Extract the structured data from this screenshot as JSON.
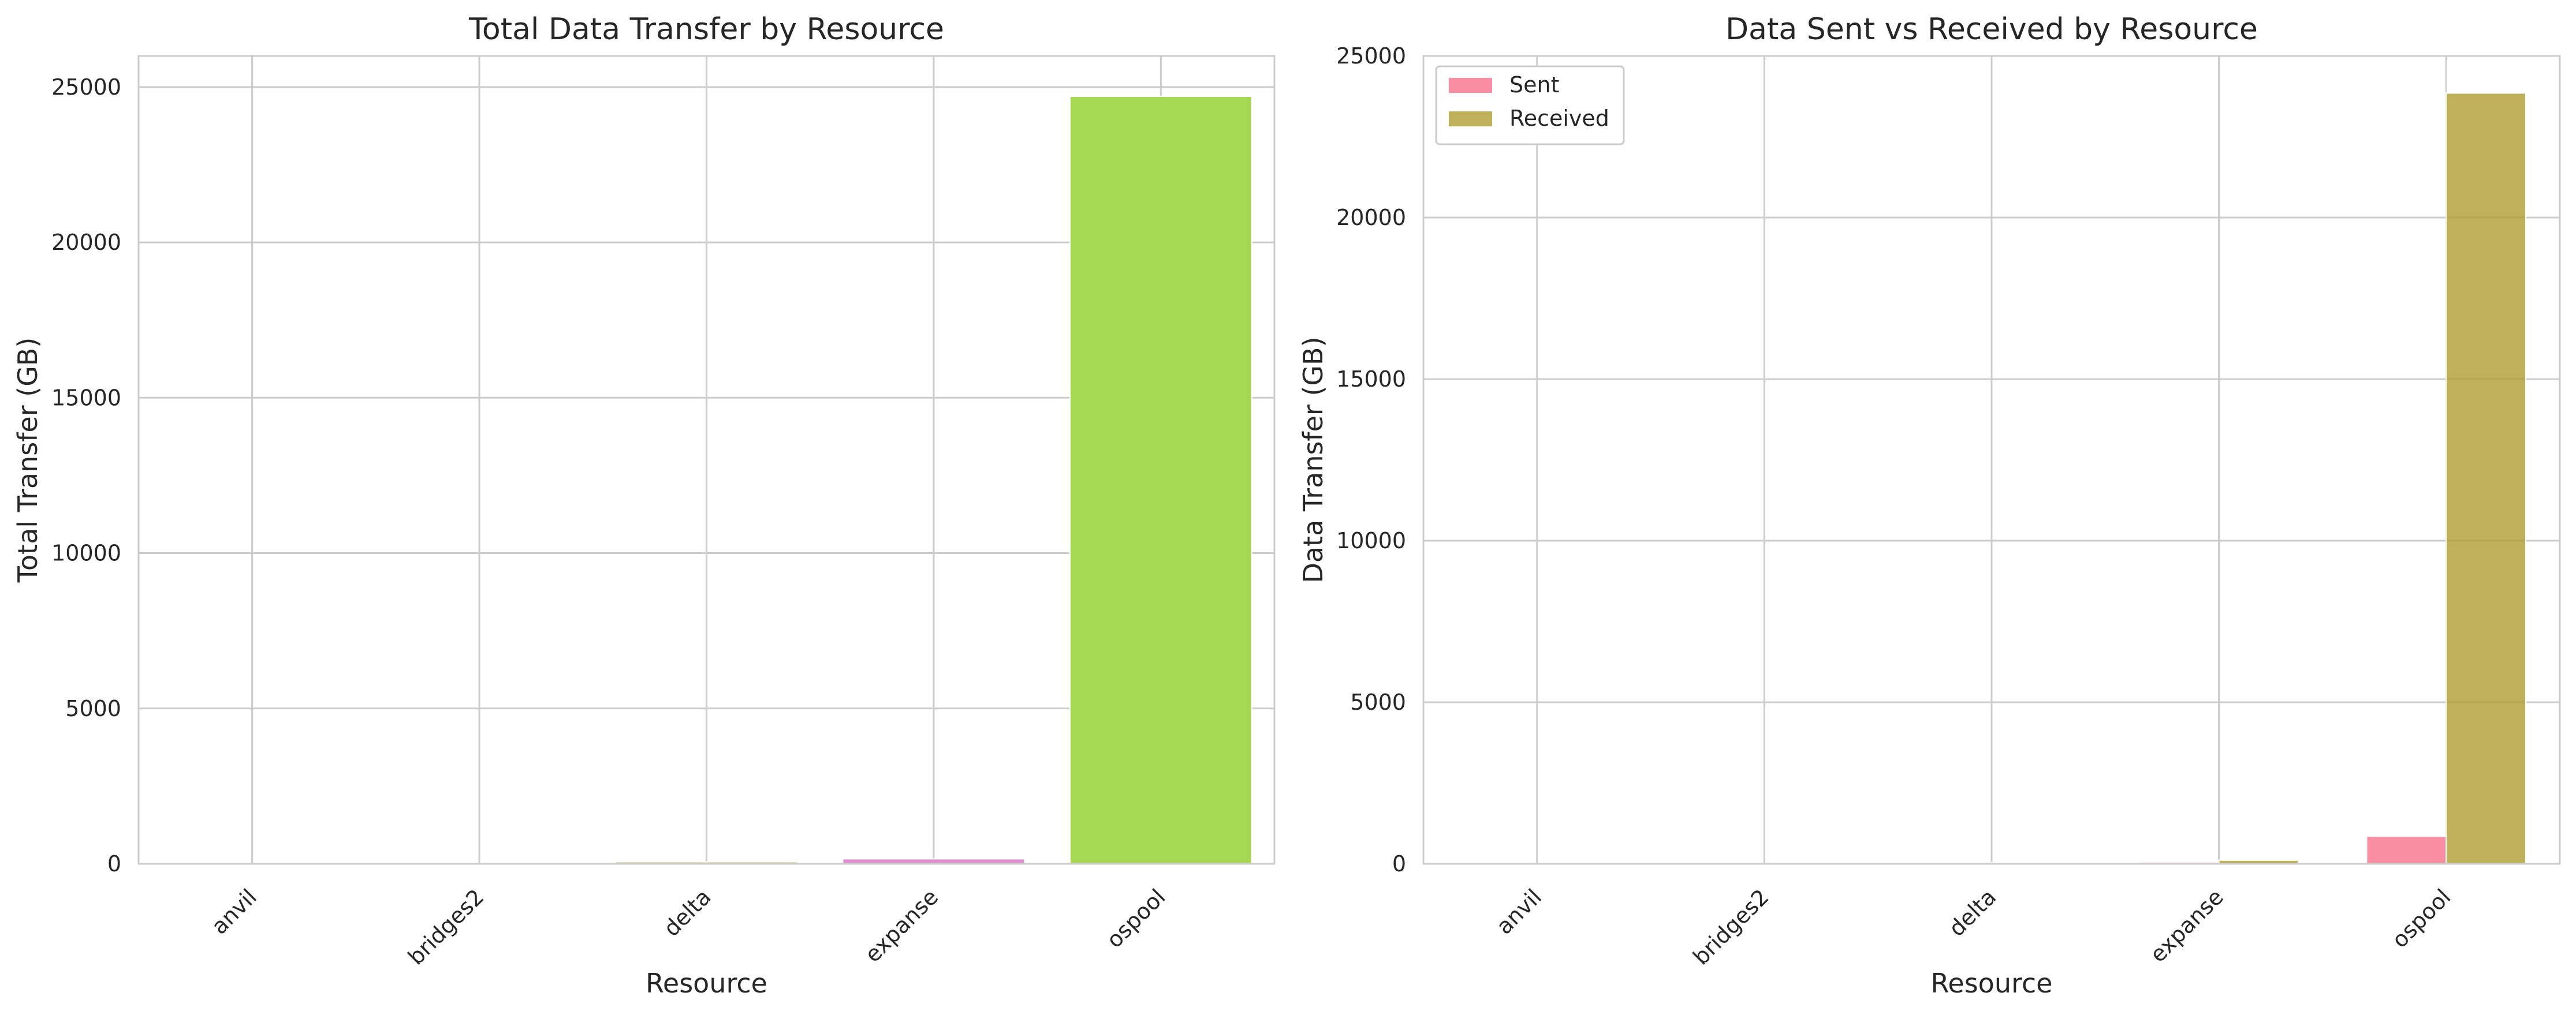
{
  "chart_data": [
    {
      "type": "bar",
      "title": "Total Data Transfer by Resource",
      "xlabel": "Resource",
      "ylabel": "Total Transfer (GB)",
      "categories": [
        "anvil",
        "bridges2",
        "delta",
        "expanse",
        "ospool"
      ],
      "values": [
        5,
        10,
        60,
        160,
        24700
      ],
      "colors": [
        "#f77189",
        "#dc8932",
        "#ae9d31",
        "#e08ed1",
        "#a6d854"
      ],
      "ylim": [
        0,
        26000
      ],
      "yticks": [
        0,
        5000,
        10000,
        15000,
        20000,
        25000
      ],
      "grid": true
    },
    {
      "type": "bar",
      "title": "Data Sent vs Received by Resource",
      "xlabel": "Resource",
      "ylabel": "Data Transfer (GB)",
      "categories": [
        "anvil",
        "bridges2",
        "delta",
        "expanse",
        "ospool"
      ],
      "series": [
        {
          "name": "Sent",
          "color": "#f77189",
          "values": [
            2,
            4,
            20,
            50,
            850
          ]
        },
        {
          "name": "Received",
          "color": "#ae9d31",
          "values": [
            3,
            6,
            40,
            110,
            23850
          ]
        }
      ],
      "ylim": [
        0,
        25000
      ],
      "yticks": [
        0,
        5000,
        10000,
        15000,
        20000,
        25000
      ],
      "legend": "top-left",
      "grid": true
    }
  ]
}
